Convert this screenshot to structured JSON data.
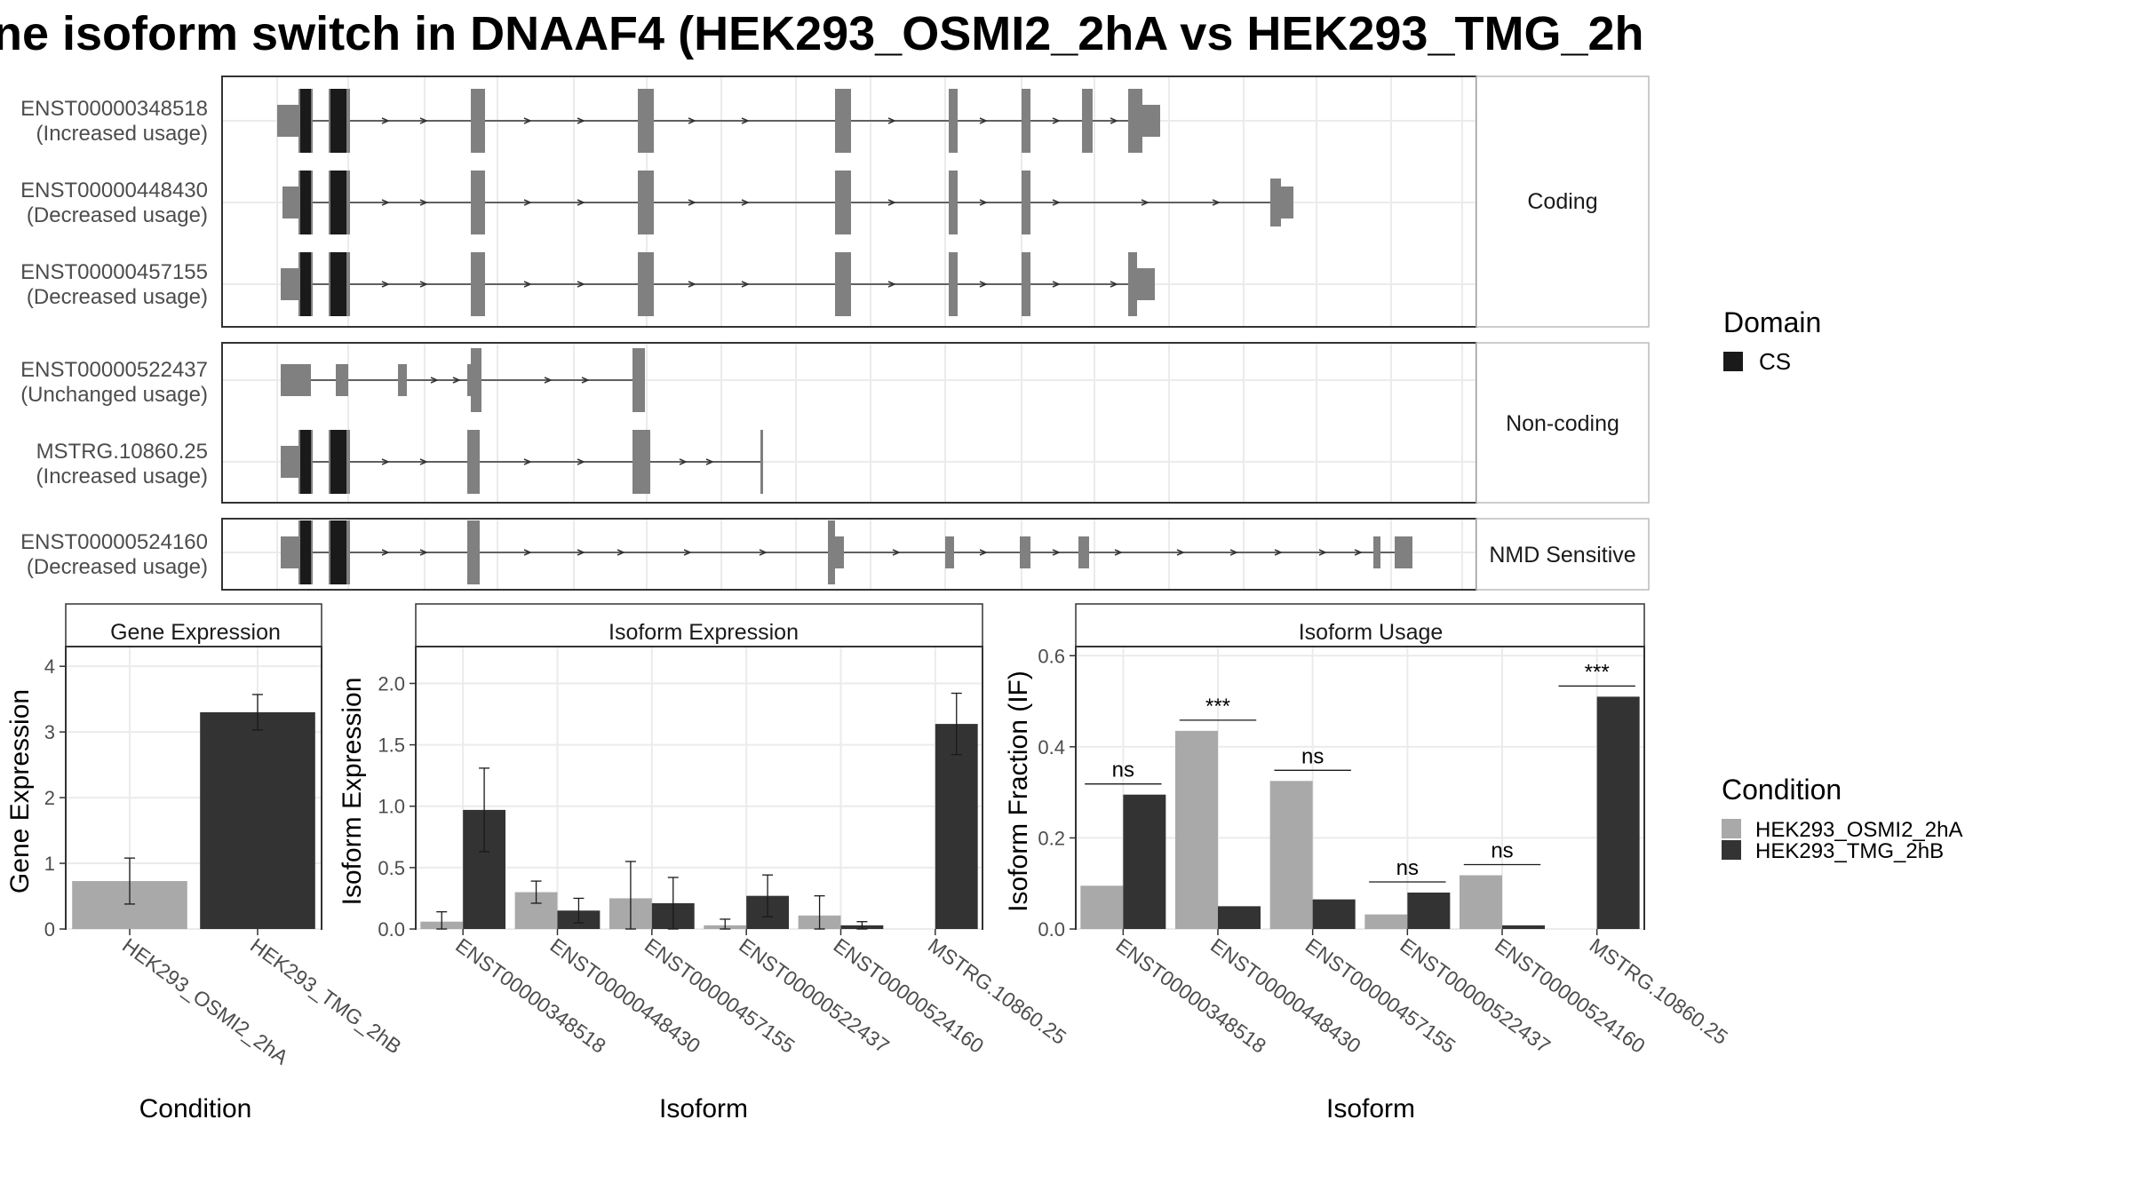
{
  "title": "ne isoform switch in DNAAF4 (HEK293_OSMI2_2hA vs HEK293_TMG_2h",
  "transcript_panel": {
    "groups": [
      {
        "label": "Coding",
        "transcripts": [
          {
            "id": "ENST00000348518",
            "usage": "(Increased usage)"
          },
          {
            "id": "ENST00000448430",
            "usage": "(Decreased usage)"
          },
          {
            "id": "ENST00000457155",
            "usage": "(Decreased usage)"
          }
        ]
      },
      {
        "label": "Non-coding",
        "transcripts": [
          {
            "id": "ENST00000522437",
            "usage": "(Unchanged usage)"
          },
          {
            "id": "MSTRG.10860.25",
            "usage": "(Increased usage)"
          }
        ]
      },
      {
        "label": "NMD Sensitive",
        "transcripts": [
          {
            "id": "ENST00000524160",
            "usage": "(Decreased usage)"
          }
        ]
      }
    ]
  },
  "legends": {
    "domain": {
      "title": "Domain",
      "items": [
        {
          "label": "CS",
          "color": "#1a1a1a"
        }
      ]
    },
    "condition": {
      "title": "Condition",
      "items": [
        {
          "label": "HEK293_OSMI2_2hA",
          "color": "#a9a9a9"
        },
        {
          "label": "HEK293_TMG_2hB",
          "color": "#333333"
        }
      ]
    }
  },
  "chart_data": [
    {
      "type": "bar",
      "title": "Gene Expression",
      "xlabel": "Condition",
      "ylabel": "Gene Expression",
      "ylim": [
        0,
        4.3
      ],
      "yticks": [
        "0",
        "1",
        "2",
        "3",
        "4"
      ],
      "categories": [
        "HEK293_OSMI2_2hA",
        "HEK293_TMG_2hB"
      ],
      "values": [
        0.73,
        3.3
      ],
      "error": [
        0.35,
        0.27
      ],
      "colors": [
        "#a9a9a9",
        "#333333"
      ]
    },
    {
      "type": "bar",
      "title": "Isoform Expression",
      "xlabel": "Isoform",
      "ylabel": "Isoform Expression",
      "ylim": [
        0,
        2.3
      ],
      "yticks": [
        "0.0",
        "0.5",
        "1.0",
        "1.5",
        "2.0"
      ],
      "categories": [
        "ENST00000348518",
        "ENST00000448430",
        "ENST00000457155",
        "ENST00000522437",
        "ENST00000524160",
        "MSTRG.10860.25"
      ],
      "series": [
        {
          "name": "HEK293_OSMI2_2hA",
          "values": [
            0.06,
            0.3,
            0.25,
            0.03,
            0.11,
            0.0
          ],
          "error": [
            0.08,
            0.09,
            0.3,
            0.05,
            0.16,
            0.0
          ]
        },
        {
          "name": "HEK293_TMG_2hB",
          "values": [
            0.97,
            0.15,
            0.21,
            0.27,
            0.03,
            1.67
          ],
          "error": [
            0.34,
            0.1,
            0.21,
            0.17,
            0.03,
            0.25
          ]
        }
      ]
    },
    {
      "type": "bar",
      "title": "Isoform Usage",
      "xlabel": "Isoform",
      "ylabel": "Isoform Fraction (IF)",
      "ylim": [
        0,
        0.62
      ],
      "yticks": [
        "0.0",
        "0.2",
        "0.4",
        "0.6"
      ],
      "categories": [
        "ENST00000348518",
        "ENST00000448430",
        "ENST00000457155",
        "ENST00000522437",
        "ENST00000524160",
        "MSTRG.10860.25"
      ],
      "series": [
        {
          "name": "HEK293_OSMI2_2hA",
          "values": [
            0.095,
            0.435,
            0.325,
            0.032,
            0.118,
            0.0
          ]
        },
        {
          "name": "HEK293_TMG_2hB",
          "values": [
            0.295,
            0.05,
            0.065,
            0.08,
            0.008,
            0.51
          ]
        }
      ],
      "significance": [
        "ns",
        "***",
        "ns",
        "ns",
        "ns",
        "***"
      ]
    }
  ]
}
